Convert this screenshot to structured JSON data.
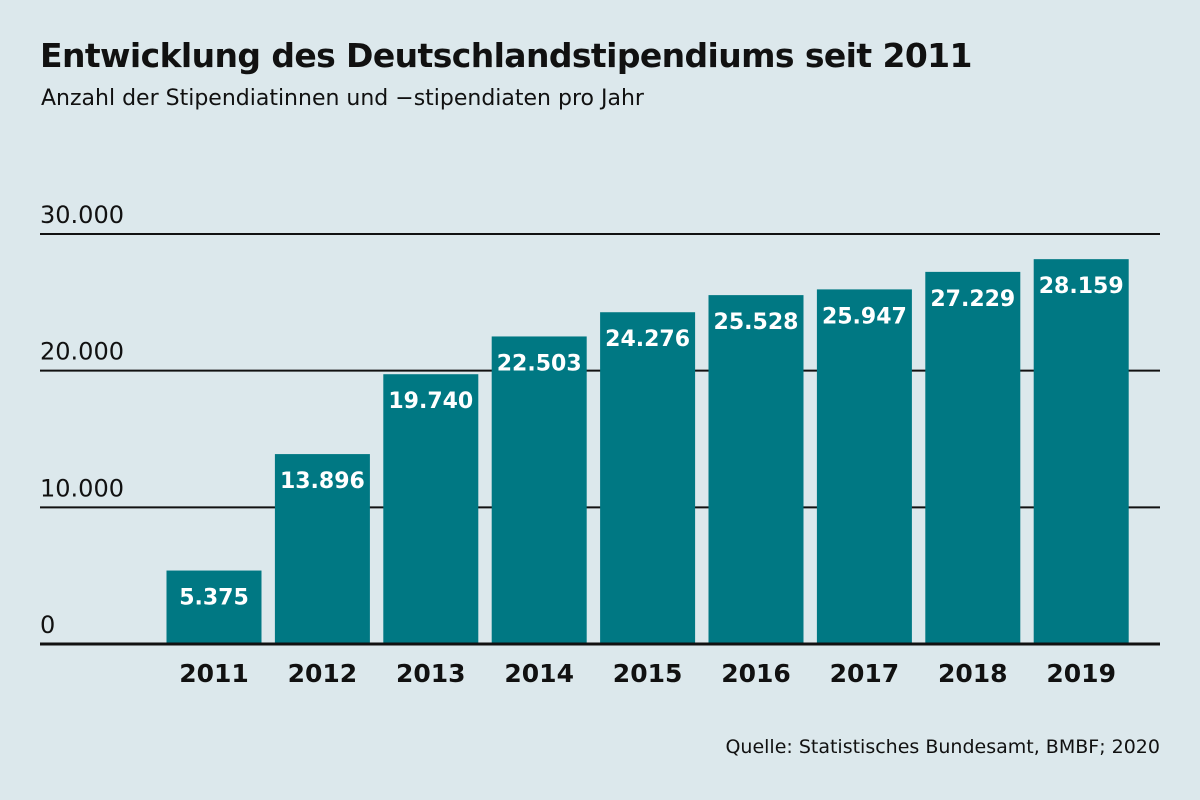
{
  "chart_data": {
    "type": "bar",
    "title": "Entwicklung des Deutschlandstipendiums seit 2011",
    "subtitle": "Anzahl der Stipendiatinnen und −stipendiaten pro Jahr",
    "categories": [
      "2011",
      "2012",
      "2013",
      "2014",
      "2015",
      "2016",
      "2017",
      "2018",
      "2019"
    ],
    "values": [
      5375,
      13896,
      19740,
      22503,
      24276,
      25528,
      25947,
      27229,
      28159
    ],
    "value_labels": [
      "5.375",
      "13.896",
      "19.740",
      "22.503",
      "24.276",
      "25.528",
      "25.947",
      "27.229",
      "28.159"
    ],
    "yticks": [
      0,
      10000,
      20000,
      30000
    ],
    "ytick_labels": [
      "0",
      "10.000",
      "20.000",
      "30.000"
    ],
    "ylim": [
      0,
      30000
    ],
    "grid": true,
    "xlabel": "",
    "ylabel": ""
  },
  "colors": {
    "background": "#dce8ec",
    "bar": "#007883",
    "bar_label": "#ffffff",
    "text": "#111111",
    "gridline": "#111111"
  },
  "source": "Quelle: Statistisches Bundesamt, BMBF; 2020"
}
